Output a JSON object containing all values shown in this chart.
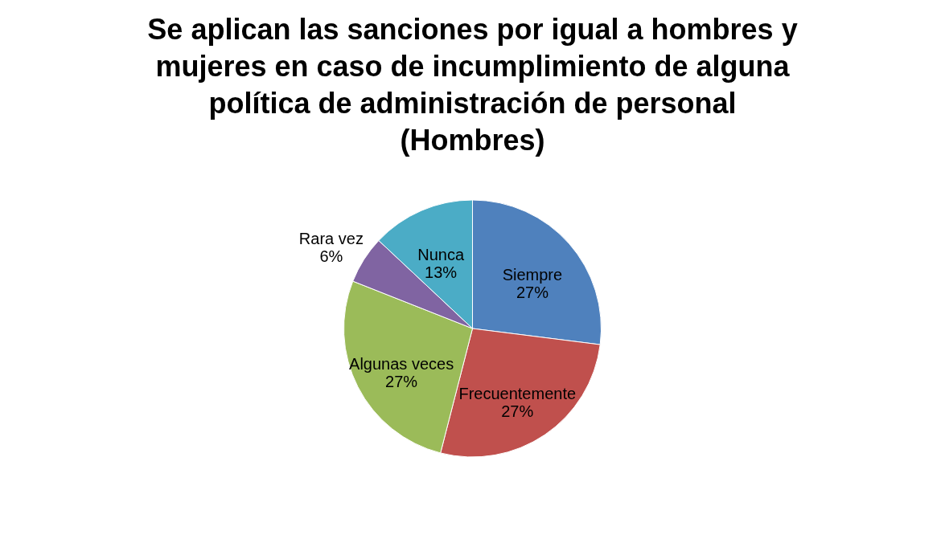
{
  "chart_data": {
    "type": "pie",
    "title": "Se aplican las sanciones por igual a hombres y mujeres en caso de incumplimiento de alguna política de administración de personal (Hombres)",
    "categories": [
      "Siempre",
      "Frecuentemente",
      "Algunas veces",
      "Rara vez",
      "Nunca"
    ],
    "values": [
      27,
      27,
      27,
      6,
      13
    ],
    "colors": [
      "#4f81bd",
      "#c0504d",
      "#9bbb59",
      "#8064a2",
      "#4bacc6"
    ],
    "value_labels": [
      "27%",
      "27%",
      "27%",
      "6%",
      "13%"
    ]
  }
}
